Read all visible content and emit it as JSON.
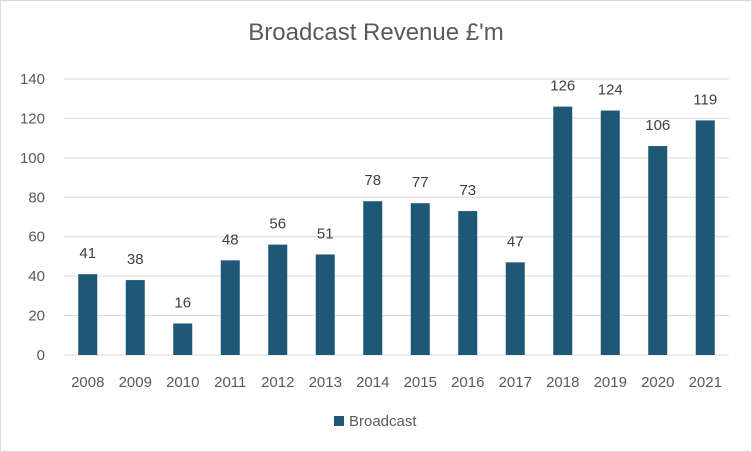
{
  "chart_data": {
    "type": "bar",
    "title": "Broadcast Revenue £'m",
    "xlabel": "",
    "ylabel": "",
    "categories": [
      "2008",
      "2009",
      "2010",
      "2011",
      "2012",
      "2013",
      "2014",
      "2015",
      "2016",
      "2017",
      "2018",
      "2019",
      "2020",
      "2021"
    ],
    "series": [
      {
        "name": "Broadcast",
        "values": [
          41,
          38,
          16,
          48,
          56,
          51,
          78,
          77,
          73,
          47,
          126,
          124,
          106,
          119
        ],
        "color": "#1f5777"
      }
    ],
    "ylim": [
      0,
      140
    ],
    "yticks": [
      "0",
      "20",
      "40",
      "60",
      "80",
      "100",
      "120",
      "140"
    ],
    "grid": true,
    "legend": "bottom",
    "data_labels": true
  }
}
